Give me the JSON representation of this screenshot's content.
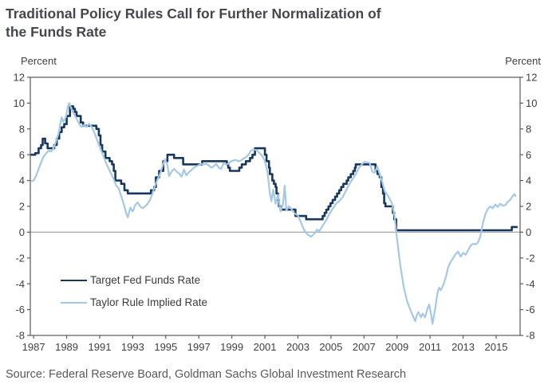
{
  "header": {
    "title_line1": "Traditional Policy Rules Call for Further Normalization of",
    "title_line2": "the Funds Rate"
  },
  "source": "Source: Federal Reserve Board, Goldman Sachs Global Investment Research",
  "colors": {
    "title_text": "#45474d",
    "axis_text": "#3f3f3f",
    "frame": "#595959",
    "zero_line": "#a6a6a6",
    "source_text": "#595959",
    "fed_funds_line": "#17375e",
    "taylor_rule_line": "#a4c8e6"
  },
  "chart_data": {
    "type": "line",
    "title": "Traditional Policy Rules Call for Further Normalization of the Funds Rate",
    "left_axis_label": "Percent",
    "right_axis_label": "Percent",
    "xlabel": "",
    "ylabel": "Percent",
    "ylim": [
      -8,
      12
    ],
    "xlim": [
      1986.8,
      2016.45
    ],
    "y_ticks": [
      12,
      10,
      8,
      6,
      4,
      2,
      0,
      -2,
      -4,
      -6,
      -8
    ],
    "x_ticks": [
      1987,
      1989,
      1991,
      1993,
      1995,
      1997,
      1999,
      2001,
      2003,
      2005,
      2007,
      2009,
      2011,
      2013,
      2015
    ],
    "grid": false,
    "zero_line": true,
    "legend_position": "inside lower-left",
    "series": [
      {
        "name": "Target Fed Funds Rate",
        "color": "#17375e",
        "stroke_width": 2.6,
        "interpolation": "step",
        "points": [
          [
            1986.8,
            6.0
          ],
          [
            1987.1,
            6.125
          ],
          [
            1987.3,
            6.5
          ],
          [
            1987.45,
            6.75
          ],
          [
            1987.55,
            7.25
          ],
          [
            1987.7,
            6.875
          ],
          [
            1987.85,
            6.5
          ],
          [
            1988.1,
            6.5
          ],
          [
            1988.25,
            6.75
          ],
          [
            1988.4,
            7.25
          ],
          [
            1988.55,
            7.75
          ],
          [
            1988.7,
            8.125
          ],
          [
            1988.85,
            8.375
          ],
          [
            1989.0,
            9.0
          ],
          [
            1989.2,
            9.75
          ],
          [
            1989.4,
            9.5625
          ],
          [
            1989.5,
            9.3125
          ],
          [
            1989.6,
            9.0
          ],
          [
            1989.85,
            8.5
          ],
          [
            1990.0,
            8.25
          ],
          [
            1990.6,
            8.25
          ],
          [
            1990.8,
            8.0
          ],
          [
            1990.95,
            7.5
          ],
          [
            1991.05,
            6.75
          ],
          [
            1991.15,
            6.25
          ],
          [
            1991.35,
            5.75
          ],
          [
            1991.6,
            5.5
          ],
          [
            1991.75,
            5.25
          ],
          [
            1991.85,
            4.75
          ],
          [
            1991.95,
            4.0
          ],
          [
            1992.3,
            3.75
          ],
          [
            1992.5,
            3.25
          ],
          [
            1992.7,
            3.0
          ],
          [
            1994.1,
            3.25
          ],
          [
            1994.3,
            3.5
          ],
          [
            1994.4,
            4.25
          ],
          [
            1994.6,
            4.75
          ],
          [
            1994.85,
            5.5
          ],
          [
            1995.1,
            6.0
          ],
          [
            1995.5,
            5.75
          ],
          [
            1996.05,
            5.25
          ],
          [
            1997.2,
            5.5
          ],
          [
            1998.7,
            5.25
          ],
          [
            1998.78,
            5.0
          ],
          [
            1998.88,
            4.75
          ],
          [
            1999.45,
            5.0
          ],
          [
            1999.6,
            5.25
          ],
          [
            1999.85,
            5.5
          ],
          [
            2000.1,
            5.75
          ],
          [
            2000.25,
            6.0
          ],
          [
            2000.4,
            6.5
          ],
          [
            2001.0,
            6.0
          ],
          [
            2001.1,
            5.5
          ],
          [
            2001.25,
            5.0
          ],
          [
            2001.3,
            4.5
          ],
          [
            2001.45,
            4.0
          ],
          [
            2001.55,
            3.75
          ],
          [
            2001.65,
            3.5
          ],
          [
            2001.7,
            3.0
          ],
          [
            2001.8,
            2.5
          ],
          [
            2001.85,
            2.0
          ],
          [
            2001.95,
            1.75
          ],
          [
            2002.85,
            1.25
          ],
          [
            2003.5,
            1.0
          ],
          [
            2004.5,
            1.25
          ],
          [
            2004.62,
            1.5
          ],
          [
            2004.72,
            1.75
          ],
          [
            2004.85,
            2.0
          ],
          [
            2004.97,
            2.25
          ],
          [
            2005.1,
            2.5
          ],
          [
            2005.25,
            2.75
          ],
          [
            2005.37,
            3.0
          ],
          [
            2005.5,
            3.25
          ],
          [
            2005.62,
            3.5
          ],
          [
            2005.75,
            3.75
          ],
          [
            2005.95,
            4.0
          ],
          [
            2006.05,
            4.25
          ],
          [
            2006.2,
            4.5
          ],
          [
            2006.35,
            4.75
          ],
          [
            2006.45,
            5.0
          ],
          [
            2006.5,
            5.25
          ],
          [
            2007.7,
            4.75
          ],
          [
            2007.82,
            4.5
          ],
          [
            2007.95,
            4.25
          ],
          [
            2008.05,
            3.5
          ],
          [
            2008.15,
            3.0
          ],
          [
            2008.22,
            2.25
          ],
          [
            2008.3,
            2.0
          ],
          [
            2008.75,
            1.5
          ],
          [
            2008.83,
            1.0
          ],
          [
            2008.95,
            0.15
          ],
          [
            2015.95,
            0.4
          ],
          [
            2016.3,
            0.4
          ]
        ]
      },
      {
        "name": "Taylor Rule Implied Rate",
        "color": "#a4c8e6",
        "stroke_width": 2.2,
        "interpolation": "linear",
        "points": [
          [
            1986.85,
            3.95
          ],
          [
            1987.0,
            4.0
          ],
          [
            1987.15,
            4.35
          ],
          [
            1987.3,
            4.9
          ],
          [
            1987.45,
            5.4
          ],
          [
            1987.6,
            5.85
          ],
          [
            1987.75,
            6.1
          ],
          [
            1987.9,
            6.3
          ],
          [
            1988.05,
            6.25
          ],
          [
            1988.2,
            6.5
          ],
          [
            1988.35,
            7.0
          ],
          [
            1988.5,
            7.6
          ],
          [
            1988.6,
            8.3
          ],
          [
            1988.7,
            8.9
          ],
          [
            1988.8,
            8.55
          ],
          [
            1988.95,
            8.9
          ],
          [
            1989.05,
            9.6
          ],
          [
            1989.15,
            10.0
          ],
          [
            1989.3,
            9.5
          ],
          [
            1989.45,
            9.15
          ],
          [
            1989.6,
            8.8
          ],
          [
            1989.75,
            8.4
          ],
          [
            1989.9,
            8.15
          ],
          [
            1990.05,
            8.3
          ],
          [
            1990.2,
            8.15
          ],
          [
            1990.35,
            8.4
          ],
          [
            1990.5,
            8.2
          ],
          [
            1990.65,
            7.8
          ],
          [
            1990.8,
            7.3
          ],
          [
            1990.95,
            6.8
          ],
          [
            1991.1,
            6.3
          ],
          [
            1991.25,
            5.8
          ],
          [
            1991.4,
            5.3
          ],
          [
            1991.55,
            4.9
          ],
          [
            1991.7,
            4.5
          ],
          [
            1991.85,
            4.1
          ],
          [
            1992.0,
            3.6
          ],
          [
            1992.15,
            3.4
          ],
          [
            1992.3,
            2.8
          ],
          [
            1992.45,
            2.2
          ],
          [
            1992.6,
            1.5
          ],
          [
            1992.7,
            1.15
          ],
          [
            1992.85,
            1.9
          ],
          [
            1993.0,
            1.6
          ],
          [
            1993.15,
            2.1
          ],
          [
            1993.3,
            2.3
          ],
          [
            1993.45,
            2.0
          ],
          [
            1993.6,
            1.85
          ],
          [
            1993.75,
            2.0
          ],
          [
            1993.9,
            2.2
          ],
          [
            1994.05,
            2.5
          ],
          [
            1994.2,
            3.0
          ],
          [
            1994.35,
            3.6
          ],
          [
            1994.5,
            4.1
          ],
          [
            1994.65,
            4.5
          ],
          [
            1994.8,
            5.1
          ],
          [
            1994.95,
            5.65
          ],
          [
            1995.1,
            5.2
          ],
          [
            1995.2,
            4.35
          ],
          [
            1995.35,
            4.7
          ],
          [
            1995.5,
            4.9
          ],
          [
            1995.65,
            4.7
          ],
          [
            1995.8,
            4.55
          ],
          [
            1995.95,
            4.3
          ],
          [
            1996.1,
            4.85
          ],
          [
            1996.25,
            4.4
          ],
          [
            1996.4,
            4.65
          ],
          [
            1996.55,
            4.8
          ],
          [
            1996.7,
            5.0
          ],
          [
            1996.85,
            5.1
          ],
          [
            1997.0,
            5.2
          ],
          [
            1997.15,
            5.3
          ],
          [
            1997.3,
            5.25
          ],
          [
            1997.45,
            5.3
          ],
          [
            1997.6,
            5.2
          ],
          [
            1997.75,
            5.0
          ],
          [
            1997.9,
            5.1
          ],
          [
            1998.05,
            5.3
          ],
          [
            1998.2,
            5.0
          ],
          [
            1998.35,
            4.9
          ],
          [
            1998.5,
            5.35
          ],
          [
            1998.65,
            5.25
          ],
          [
            1998.8,
            5.3
          ],
          [
            1998.95,
            5.5
          ],
          [
            1999.1,
            5.55
          ],
          [
            1999.25,
            5.6
          ],
          [
            1999.4,
            5.5
          ],
          [
            1999.55,
            5.55
          ],
          [
            1999.7,
            5.7
          ],
          [
            1999.85,
            5.8
          ],
          [
            2000.0,
            6.0
          ],
          [
            2000.15,
            6.3
          ],
          [
            2000.3,
            6.4
          ],
          [
            2000.5,
            6.35
          ],
          [
            2000.7,
            6.1
          ],
          [
            2000.85,
            5.9
          ],
          [
            2001.0,
            5.5
          ],
          [
            2001.15,
            4.7
          ],
          [
            2001.3,
            3.0
          ],
          [
            2001.4,
            2.4
          ],
          [
            2001.5,
            3.3
          ],
          [
            2001.65,
            2.2
          ],
          [
            2001.8,
            2.9
          ],
          [
            2001.95,
            1.6
          ],
          [
            2002.1,
            2.2
          ],
          [
            2002.2,
            3.6
          ],
          [
            2002.3,
            1.7
          ],
          [
            2002.45,
            2.0
          ],
          [
            2002.6,
            1.8
          ],
          [
            2002.8,
            1.45
          ],
          [
            2003.0,
            1.3
          ],
          [
            2003.2,
            0.7
          ],
          [
            2003.4,
            0.1
          ],
          [
            2003.6,
            -0.2
          ],
          [
            2003.8,
            -0.35
          ],
          [
            2004.0,
            -0.1
          ],
          [
            2004.15,
            0.2
          ],
          [
            2004.3,
            0.1
          ],
          [
            2004.5,
            0.5
          ],
          [
            2004.7,
            0.9
          ],
          [
            2004.9,
            1.4
          ],
          [
            2005.1,
            1.8
          ],
          [
            2005.3,
            2.2
          ],
          [
            2005.5,
            2.4
          ],
          [
            2005.7,
            2.7
          ],
          [
            2005.9,
            3.2
          ],
          [
            2006.1,
            3.7
          ],
          [
            2006.3,
            4.1
          ],
          [
            2006.5,
            4.5
          ],
          [
            2006.7,
            5.0
          ],
          [
            2006.9,
            5.3
          ],
          [
            2007.05,
            5.45
          ],
          [
            2007.2,
            5.4
          ],
          [
            2007.35,
            5.35
          ],
          [
            2007.5,
            4.7
          ],
          [
            2007.65,
            4.6
          ],
          [
            2007.8,
            5.1
          ],
          [
            2007.95,
            4.5
          ],
          [
            2008.1,
            3.9
          ],
          [
            2008.25,
            3.2
          ],
          [
            2008.4,
            2.9
          ],
          [
            2008.55,
            2.6
          ],
          [
            2008.7,
            2.2
          ],
          [
            2008.85,
            1.3
          ],
          [
            2009.0,
            -0.5
          ],
          [
            2009.2,
            -2.6
          ],
          [
            2009.4,
            -4.2
          ],
          [
            2009.6,
            -5.3
          ],
          [
            2009.8,
            -6.0
          ],
          [
            2010.0,
            -6.6
          ],
          [
            2010.1,
            -6.9
          ],
          [
            2010.2,
            -6.4
          ],
          [
            2010.3,
            -6.2
          ],
          [
            2010.45,
            -6.6
          ],
          [
            2010.55,
            -6.3
          ],
          [
            2010.7,
            -6.6
          ],
          [
            2010.85,
            -5.9
          ],
          [
            2010.95,
            -5.6
          ],
          [
            2011.05,
            -6.3
          ],
          [
            2011.15,
            -7.1
          ],
          [
            2011.3,
            -6.0
          ],
          [
            2011.45,
            -4.7
          ],
          [
            2011.55,
            -4.3
          ],
          [
            2011.65,
            -4.5
          ],
          [
            2011.8,
            -4.1
          ],
          [
            2011.95,
            -3.5
          ],
          [
            2012.1,
            -2.7
          ],
          [
            2012.25,
            -2.3
          ],
          [
            2012.4,
            -2.0
          ],
          [
            2012.55,
            -1.7
          ],
          [
            2012.7,
            -1.5
          ],
          [
            2012.85,
            -1.9
          ],
          [
            2013.0,
            -1.6
          ],
          [
            2013.15,
            -1.75
          ],
          [
            2013.3,
            -1.4
          ],
          [
            2013.45,
            -1.05
          ],
          [
            2013.6,
            -0.9
          ],
          [
            2013.75,
            -0.95
          ],
          [
            2013.9,
            -0.8
          ],
          [
            2014.05,
            -0.3
          ],
          [
            2014.2,
            0.7
          ],
          [
            2014.35,
            1.4
          ],
          [
            2014.5,
            1.8
          ],
          [
            2014.65,
            2.0
          ],
          [
            2014.8,
            1.85
          ],
          [
            2014.95,
            2.15
          ],
          [
            2015.1,
            1.95
          ],
          [
            2015.25,
            2.2
          ],
          [
            2015.4,
            2.05
          ],
          [
            2015.55,
            2.1
          ],
          [
            2015.7,
            2.35
          ],
          [
            2015.85,
            2.5
          ],
          [
            2016.0,
            2.8
          ],
          [
            2016.1,
            2.95
          ],
          [
            2016.2,
            2.75
          ]
        ]
      }
    ]
  }
}
